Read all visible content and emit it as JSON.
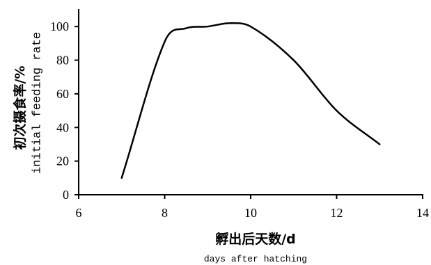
{
  "chart_data": {
    "type": "line",
    "xlabel": [
      "孵出后天数/d",
      "days after hatching"
    ],
    "ylabel": [
      "初次摄食率/%",
      "initial feeding rate"
    ],
    "xlim": [
      6,
      14
    ],
    "ylim": [
      0,
      110
    ],
    "xticks": [
      6,
      8,
      10,
      12,
      14
    ],
    "yticks": [
      0,
      20,
      40,
      60,
      80,
      100
    ],
    "grid": false,
    "smooth": true,
    "series": [
      {
        "x": [
          7,
          8,
          8.5,
          9,
          9.5,
          10,
          11,
          12,
          13
        ],
        "y": [
          10,
          91,
          99,
          100,
          102,
          100,
          80,
          50,
          30
        ]
      }
    ],
    "colors": {
      "line": "#000000",
      "axes": "#000000",
      "background": "#ffffff"
    }
  }
}
